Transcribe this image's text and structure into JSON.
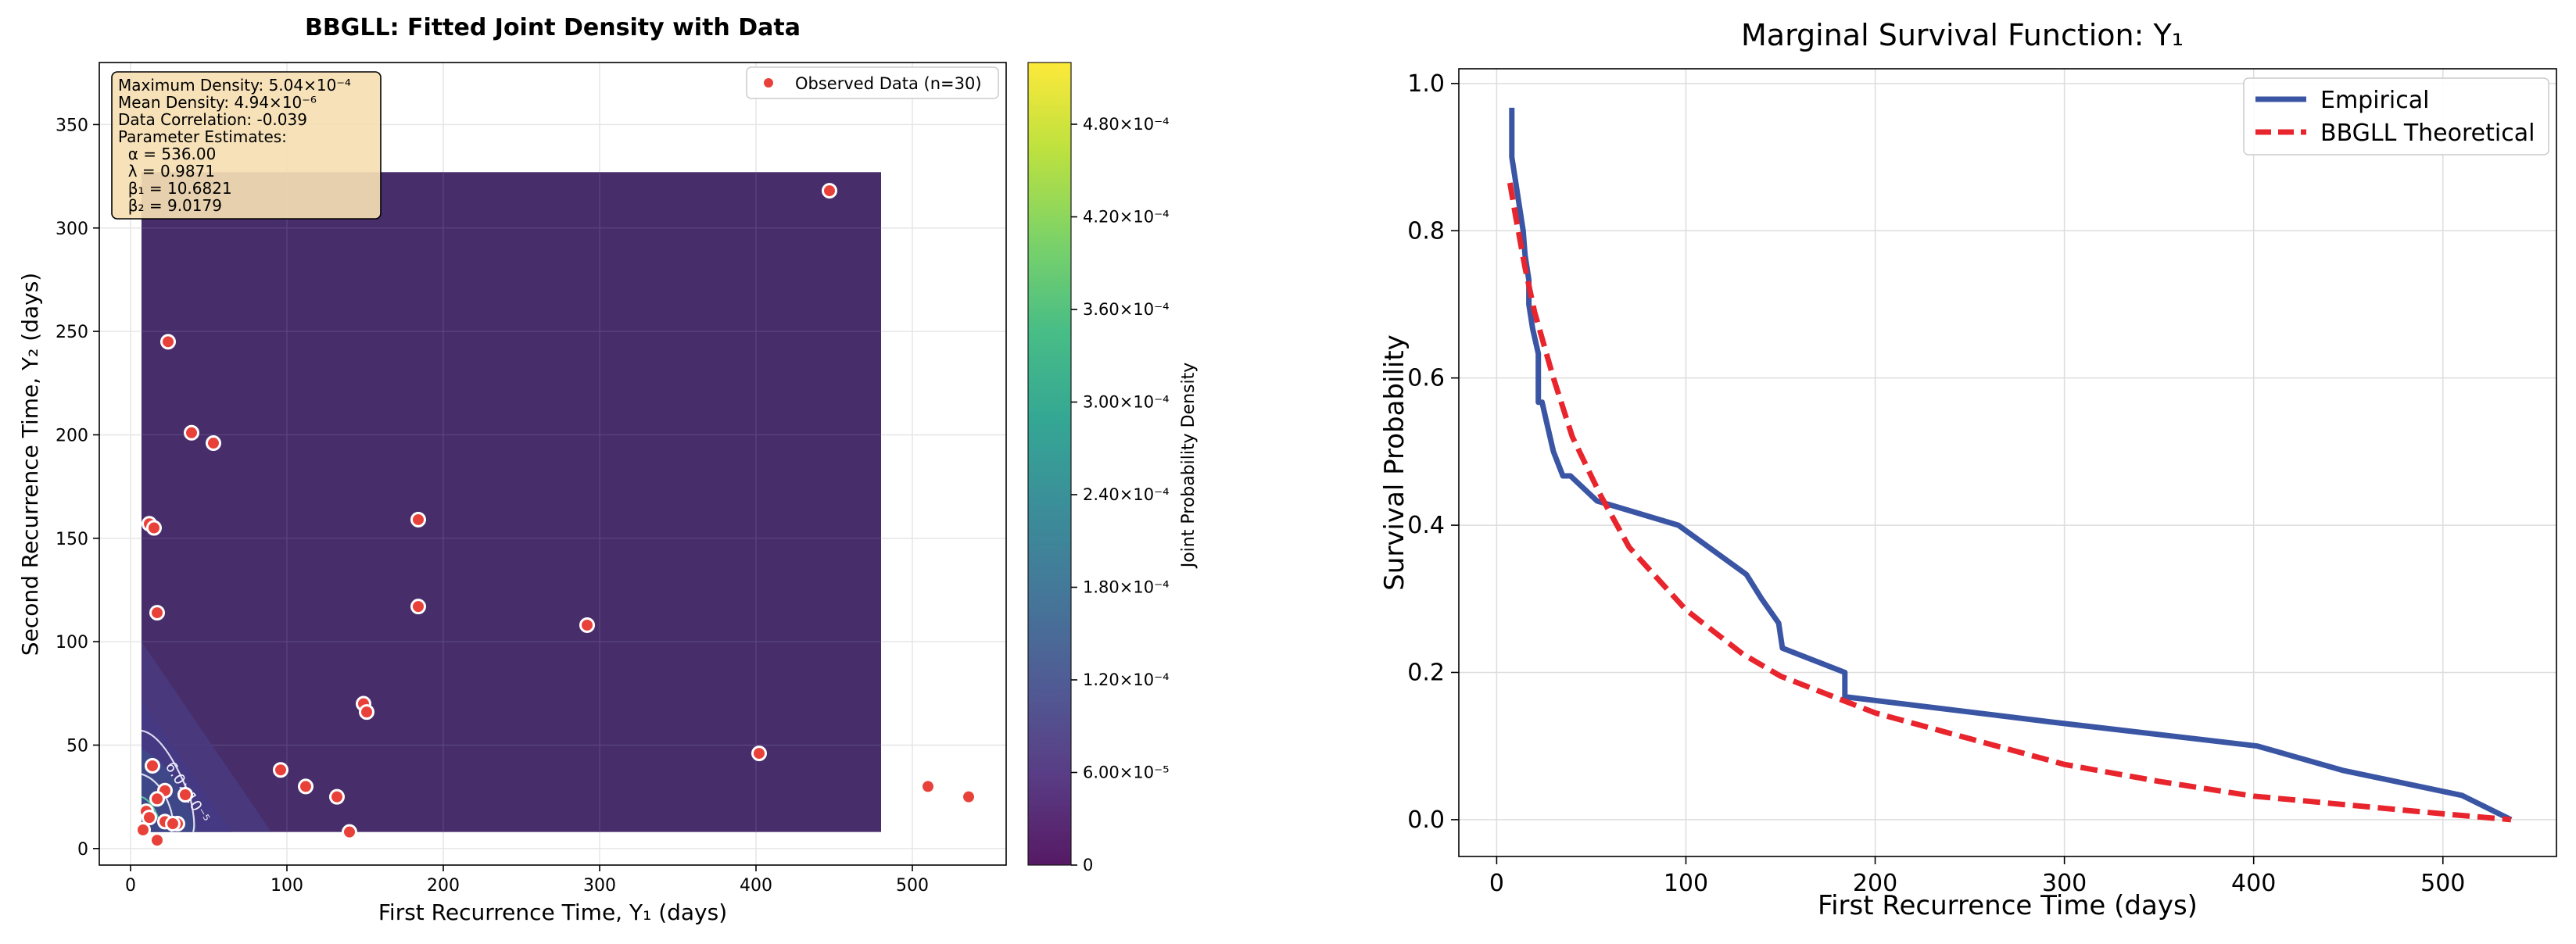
{
  "chart_data": [
    {
      "type": "scatter",
      "title": "BBGLL: Fitted Joint Density with Data",
      "xlabel": "First Recurrence Time, Y₁ (days)",
      "ylabel": "Second Recurrence Time, Y₂ (days)",
      "xlim": [
        -20,
        560
      ],
      "ylim": [
        -8,
        380
      ],
      "xticks": [
        "0",
        "100",
        "200",
        "300",
        "400",
        "500"
      ],
      "yticks": [
        "0",
        "50",
        "100",
        "150",
        "200",
        "250",
        "300",
        "350"
      ],
      "xtick_values": [
        0,
        100,
        200,
        300,
        400,
        500
      ],
      "ytick_values": [
        0,
        50,
        100,
        150,
        200,
        250,
        300,
        350
      ],
      "grid": true,
      "legend": {
        "position": "top-right",
        "label": "Observed Data (n=30)"
      },
      "colors": {
        "points": "#e8413a",
        "density_bg": "#472e6b",
        "density_mid": "#443a83",
        "contour": "#dcdcf0"
      },
      "density_region": {
        "x": [
          7,
          480
        ],
        "y": [
          8,
          327
        ]
      },
      "contour_label": "6.0×10⁻⁵",
      "info_box": [
        "Maximum Density: 5.04×10⁻⁴",
        "Mean Density: 4.94×10⁻⁶",
        "Data Correlation: -0.039",
        "Parameter Estimates:",
        "  α = 536.00",
        "  λ = 0.9871",
        "  β₁ = 10.6821",
        "  β₂ = 9.0179"
      ],
      "points": [
        {
          "x": 447,
          "y": 318
        },
        {
          "x": 24,
          "y": 245
        },
        {
          "x": 39,
          "y": 201
        },
        {
          "x": 53,
          "y": 196
        },
        {
          "x": 12,
          "y": 157
        },
        {
          "x": 15,
          "y": 155
        },
        {
          "x": 184,
          "y": 159
        },
        {
          "x": 184,
          "y": 117
        },
        {
          "x": 17,
          "y": 114
        },
        {
          "x": 292,
          "y": 108
        },
        {
          "x": 149,
          "y": 70
        },
        {
          "x": 151,
          "y": 66
        },
        {
          "x": 402,
          "y": 46
        },
        {
          "x": 14,
          "y": 40
        },
        {
          "x": 96,
          "y": 38
        },
        {
          "x": 112,
          "y": 30
        },
        {
          "x": 22,
          "y": 28
        },
        {
          "x": 35,
          "y": 26
        },
        {
          "x": 132,
          "y": 25
        },
        {
          "x": 17,
          "y": 24
        },
        {
          "x": 510,
          "y": 30
        },
        {
          "x": 536,
          "y": 25
        },
        {
          "x": 140,
          "y": 8
        },
        {
          "x": 22,
          "y": 13
        },
        {
          "x": 30,
          "y": 12
        },
        {
          "x": 8,
          "y": 9
        },
        {
          "x": 17,
          "y": 4
        },
        {
          "x": 10,
          "y": 18
        },
        {
          "x": 27,
          "y": 12
        },
        {
          "x": 12,
          "y": 15
        }
      ]
    },
    {
      "type": "colorbar",
      "label": "Joint Probability Density",
      "range": [
        0,
        0.00052
      ],
      "tick_values": [
        0,
        6e-05,
        0.00012,
        0.00018,
        0.00024,
        0.0003,
        0.00036,
        0.00042,
        0.00048
      ],
      "tick_labels": [
        "0",
        "6.00×10⁻⁵",
        "1.20×10⁻⁴",
        "1.80×10⁻⁴",
        "2.40×10⁻⁴",
        "3.00×10⁻⁴",
        "3.60×10⁻⁴",
        "4.20×10⁻⁴",
        "4.80×10⁻⁴"
      ],
      "colormap": [
        "#440154",
        "#482878",
        "#3e4989",
        "#31688e",
        "#26828e",
        "#1f9e89",
        "#35b779",
        "#6ece58",
        "#b5de2b",
        "#fde725"
      ]
    },
    {
      "type": "line",
      "title": "Marginal Survival Function: Y₁",
      "xlabel": "First Recurrence Time (days)",
      "ylabel": "Survival Probability",
      "xlim": [
        -20,
        560
      ],
      "ylim": [
        -0.05,
        1.02
      ],
      "xticks": [
        "0",
        "100",
        "200",
        "300",
        "400",
        "500"
      ],
      "yticks": [
        "0.0",
        "0.2",
        "0.4",
        "0.6",
        "0.8",
        "1.0"
      ],
      "xtick_values": [
        0,
        100,
        200,
        300,
        400,
        500
      ],
      "ytick_values": [
        0,
        0.2,
        0.4,
        0.6,
        0.8,
        1.0
      ],
      "grid": true,
      "legend": "top-right",
      "series": [
        {
          "name": "Empirical",
          "color": "#3a55a4",
          "style": "solid",
          "x": [
            8,
            8,
            10,
            12,
            14,
            15,
            17,
            17,
            19,
            22,
            22,
            24,
            24,
            27,
            30,
            35,
            39,
            53,
            96,
            132,
            140,
            149,
            151,
            184,
            184,
            292,
            402,
            447,
            510,
            536
          ],
          "y": [
            0.967,
            0.9,
            0.867,
            0.833,
            0.8,
            0.767,
            0.733,
            0.7,
            0.667,
            0.633,
            0.567,
            0.567,
            0.567,
            0.533,
            0.5,
            0.467,
            0.467,
            0.433,
            0.4,
            0.333,
            0.3,
            0.267,
            0.233,
            0.2,
            0.167,
            0.133,
            0.1,
            0.067,
            0.033,
            0.0
          ]
        },
        {
          "name": "BBGLL Theoretical",
          "color": "#e8252d",
          "style": "dashed",
          "x": [
            7,
            10,
            15,
            20,
            30,
            40,
            55,
            70,
            100,
            130,
            150,
            200,
            250,
            300,
            350,
            400,
            450,
            500,
            536
          ],
          "y": [
            0.865,
            0.82,
            0.75,
            0.69,
            0.6,
            0.52,
            0.44,
            0.37,
            0.285,
            0.225,
            0.195,
            0.145,
            0.11,
            0.075,
            0.052,
            0.032,
            0.02,
            0.008,
            0.0
          ]
        }
      ]
    }
  ]
}
